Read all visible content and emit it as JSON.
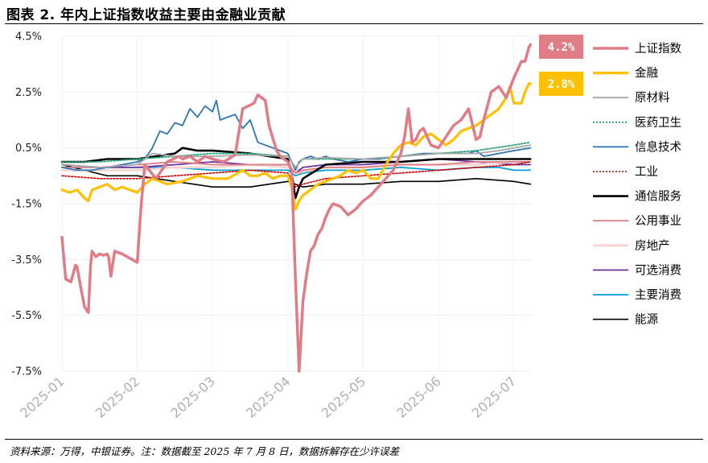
{
  "figure": {
    "title": "图表 2. 年内上证指数收益主要由金融业贡献",
    "source": "资料来源：万得，中银证券。注：数据截至 2025 年 7 月 8 日，数据拆解存在少许误差"
  },
  "chart_data": {
    "type": "line",
    "title": "图表 2. 年内上证指数收益主要由金融业贡献",
    "xlabel": "",
    "ylabel": "",
    "ylim": [
      -7.5,
      4.5
    ],
    "yticks": [
      "4.5%",
      "2.5%",
      "0.5%",
      "-1.5%",
      "-3.5%",
      "-5.5%",
      "-7.5%"
    ],
    "ytick_values": [
      4.5,
      2.5,
      0.5,
      -1.5,
      -3.5,
      -5.5,
      -7.5
    ],
    "xticks": [
      "2025-01",
      "2025-02",
      "2025-03",
      "2025-04",
      "2025-05",
      "2025-06",
      "2025-07"
    ],
    "xtick_values": [
      0,
      1,
      2,
      3,
      4,
      5,
      6
    ],
    "xlim": [
      0,
      6.25
    ],
    "legend_position": "right",
    "badges": [
      {
        "series": "上证指数",
        "label": "4.2%",
        "color": "#e07c85"
      },
      {
        "series": "金融",
        "label": "2.8%",
        "color": "#ffc000"
      }
    ],
    "series": [
      {
        "name": "上证指数",
        "color": "#e07c85",
        "width": 3.5,
        "dash": "",
        "x": [
          0,
          0.05,
          0.12,
          0.18,
          0.2,
          0.25,
          0.3,
          0.35,
          0.38,
          0.4,
          0.45,
          0.5,
          0.55,
          0.6,
          0.62,
          0.65,
          0.7,
          0.75,
          0.8,
          1.0,
          1.05,
          1.1,
          1.25,
          1.4,
          1.55,
          1.6,
          1.7,
          1.8,
          1.9,
          2.0,
          2.15,
          2.3,
          2.4,
          2.55,
          2.6,
          2.7,
          2.75,
          2.85,
          2.9,
          3.0,
          3.05,
          3.1,
          3.15,
          3.2,
          3.25,
          3.3,
          3.35,
          3.4,
          3.45,
          3.5,
          3.55,
          3.6,
          3.7,
          3.8,
          3.9,
          4.0,
          4.1,
          4.2,
          4.3,
          4.4,
          4.5,
          4.55,
          4.6,
          4.65,
          4.7,
          4.75,
          4.8,
          4.9,
          5.0,
          5.1,
          5.2,
          5.3,
          5.4,
          5.5,
          5.55,
          5.6,
          5.7,
          5.8,
          5.9,
          6.0,
          6.05,
          6.1,
          6.15,
          6.2,
          6.22
        ],
        "y": [
          -2.7,
          -4.2,
          -4.3,
          -3.7,
          -3.75,
          -4.5,
          -5.2,
          -5.4,
          -3.7,
          -3.2,
          -3.4,
          -3.3,
          -3.35,
          -3.3,
          -3.4,
          -4.1,
          -3.2,
          -3.25,
          -3.3,
          -3.6,
          -1.6,
          -0.1,
          -0.6,
          0.0,
          0.2,
          0.1,
          0.2,
          0.0,
          0.2,
          0.1,
          0.0,
          0.25,
          1.9,
          2.1,
          2.4,
          2.2,
          1.3,
          0.4,
          0.2,
          0.0,
          -0.3,
          -4.2,
          -7.5,
          -5.0,
          -4.0,
          -3.2,
          -3.0,
          -2.6,
          -2.4,
          -2.0,
          -1.7,
          -1.5,
          -1.6,
          -1.9,
          -1.7,
          -1.4,
          -1.2,
          -0.9,
          -0.6,
          -0.3,
          0.3,
          0.9,
          1.9,
          0.7,
          0.8,
          1.1,
          1.2,
          0.6,
          0.5,
          0.9,
          1.3,
          1.5,
          1.9,
          0.8,
          0.9,
          1.5,
          2.5,
          2.7,
          2.3,
          3.0,
          3.3,
          3.6,
          3.6,
          4.1,
          4.2
        ]
      },
      {
        "name": "金融",
        "color": "#ffc000",
        "width": 3.2,
        "dash": "",
        "x": [
          0,
          0.1,
          0.2,
          0.3,
          0.35,
          0.4,
          0.5,
          0.6,
          0.7,
          0.8,
          0.9,
          1.0,
          1.1,
          1.2,
          1.4,
          1.6,
          1.8,
          2.0,
          2.2,
          2.4,
          2.5,
          2.6,
          2.7,
          2.8,
          2.9,
          3.0,
          3.05,
          3.1,
          3.15,
          3.2,
          3.3,
          3.4,
          3.5,
          3.6,
          3.7,
          3.8,
          3.9,
          4.0,
          4.1,
          4.2,
          4.3,
          4.4,
          4.5,
          4.6,
          4.7,
          4.8,
          4.9,
          5.0,
          5.1,
          5.2,
          5.3,
          5.4,
          5.5,
          5.6,
          5.7,
          5.8,
          5.9,
          5.95,
          6.0,
          6.1,
          6.15,
          6.2,
          6.22
        ],
        "y": [
          -1.0,
          -1.1,
          -1.0,
          -1.3,
          -1.4,
          -1.0,
          -0.9,
          -0.8,
          -1.0,
          -0.9,
          -1.0,
          -1.1,
          -0.8,
          -0.6,
          -0.8,
          -0.7,
          -0.5,
          -0.6,
          -0.6,
          -0.3,
          -0.5,
          -0.5,
          -0.4,
          -0.6,
          -0.5,
          -0.5,
          -0.9,
          -1.7,
          -1.4,
          -1.2,
          -1.0,
          -0.8,
          -0.7,
          -0.6,
          -0.5,
          -0.3,
          -0.4,
          -0.3,
          -0.6,
          -0.6,
          -0.1,
          0.3,
          0.6,
          0.7,
          0.6,
          0.9,
          1.0,
          0.8,
          0.6,
          0.8,
          1.1,
          1.2,
          1.3,
          1.5,
          1.7,
          1.9,
          2.3,
          2.7,
          2.1,
          2.1,
          2.5,
          2.8,
          2.8
        ]
      },
      {
        "name": "原材料",
        "color": "#a6a6a6",
        "width": 1.8,
        "dash": "",
        "x": [
          0,
          0.5,
          1.0,
          1.2,
          1.5,
          2.0,
          2.5,
          3.0,
          3.1,
          3.2,
          3.5,
          4.0,
          4.5,
          5.0,
          5.5,
          5.8,
          6.0,
          6.22
        ],
        "y": [
          -0.1,
          -0.2,
          -0.1,
          0.3,
          0.2,
          0.2,
          0.25,
          0.2,
          -0.2,
          0.1,
          0.15,
          0.1,
          0.2,
          0.3,
          0.3,
          0.4,
          0.5,
          0.6
        ]
      },
      {
        "name": "医药卫生",
        "color": "#2aa37a",
        "width": 1.8,
        "dash": "2,2",
        "x": [
          0,
          0.5,
          1.0,
          1.5,
          2.0,
          2.5,
          3.0,
          3.1,
          3.2,
          3.5,
          4.0,
          4.5,
          5.0,
          5.5,
          6.0,
          6.22
        ],
        "y": [
          0.0,
          0.0,
          0.1,
          0.2,
          0.3,
          0.3,
          0.2,
          -0.2,
          0.1,
          0.1,
          0.1,
          0.2,
          0.3,
          0.4,
          0.6,
          0.7
        ]
      },
      {
        "name": "信息技术",
        "color": "#2e75b6",
        "width": 1.8,
        "dash": "",
        "x": [
          0,
          0.2,
          0.4,
          0.6,
          0.8,
          1.0,
          1.1,
          1.2,
          1.3,
          1.4,
          1.5,
          1.6,
          1.7,
          1.8,
          1.9,
          2.0,
          2.05,
          2.1,
          2.2,
          2.3,
          2.4,
          2.5,
          2.6,
          2.7,
          2.8,
          2.9,
          3.0,
          3.05,
          3.1,
          3.15,
          3.2,
          3.3,
          3.4,
          3.5,
          3.6,
          3.8,
          4.0,
          4.2,
          4.5,
          4.8,
          5.0,
          5.2,
          5.4,
          5.5,
          5.6,
          5.8,
          6.0,
          6.22
        ],
        "y": [
          -0.2,
          -0.3,
          -0.3,
          -0.2,
          -0.1,
          0.0,
          0.1,
          0.5,
          1.1,
          1.0,
          1.4,
          1.3,
          1.9,
          1.6,
          2.0,
          1.8,
          2.2,
          1.5,
          1.6,
          1.7,
          1.2,
          1.5,
          0.7,
          0.6,
          0.5,
          0.4,
          0.3,
          0.0,
          -0.3,
          0.0,
          0.1,
          0.2,
          0.1,
          0.2,
          0.1,
          0.0,
          0.1,
          0.1,
          0.2,
          0.3,
          0.3,
          0.3,
          0.3,
          0.4,
          0.2,
          0.3,
          0.4,
          0.5
        ]
      },
      {
        "name": "工业",
        "color": "#c00000",
        "width": 1.6,
        "dash": "2,2",
        "x": [
          0,
          0.5,
          1.0,
          1.5,
          2.0,
          2.5,
          3.0,
          3.1,
          3.2,
          3.5,
          4.0,
          4.5,
          5.0,
          5.5,
          6.0,
          6.22
        ],
        "y": [
          -0.5,
          -0.6,
          -0.6,
          -0.5,
          -0.4,
          -0.3,
          -0.4,
          -0.9,
          -0.8,
          -0.6,
          -0.5,
          -0.4,
          -0.3,
          -0.2,
          -0.1,
          0.0
        ]
      },
      {
        "name": "通信服务",
        "color": "#000000",
        "width": 2.6,
        "dash": "",
        "x": [
          0,
          0.3,
          0.6,
          1.0,
          1.5,
          1.6,
          1.8,
          2.0,
          2.5,
          3.0,
          3.05,
          3.1,
          3.15,
          3.2,
          3.5,
          4.0,
          4.5,
          5.0,
          5.5,
          6.0,
          6.22
        ],
        "y": [
          0.0,
          0.0,
          0.1,
          0.1,
          0.3,
          0.5,
          0.4,
          0.4,
          0.3,
          0.1,
          -0.4,
          -1.3,
          -0.9,
          -0.6,
          -0.1,
          0.0,
          0.0,
          0.1,
          0.1,
          0.1,
          0.1
        ]
      },
      {
        "name": "公用事业",
        "color": "#e07c85",
        "width": 1.8,
        "dash": "",
        "x": [
          0,
          0.5,
          1.0,
          1.5,
          2.0,
          2.5,
          3.0,
          3.1,
          3.2,
          3.5,
          4.0,
          4.5,
          5.0,
          5.5,
          6.0,
          6.22
        ],
        "y": [
          -0.2,
          -0.2,
          -0.1,
          0.0,
          -0.1,
          -0.1,
          -0.1,
          -0.4,
          -0.3,
          -0.2,
          -0.2,
          -0.1,
          -0.1,
          0.0,
          0.0,
          0.0
        ]
      },
      {
        "name": "房地产",
        "color": "#f4d5d2",
        "width": 2.8,
        "dash": "",
        "x": [
          0,
          0.5,
          1.0,
          1.5,
          2.0,
          2.5,
          3.0,
          3.1,
          3.5,
          4.0,
          4.5,
          5.0,
          5.5,
          6.0,
          6.22
        ],
        "y": [
          -0.3,
          -0.3,
          -0.3,
          -0.2,
          -0.2,
          -0.1,
          -0.2,
          -0.4,
          -0.2,
          -0.2,
          -0.1,
          -0.1,
          -0.1,
          0.0,
          0.0
        ]
      },
      {
        "name": "可选消费",
        "color": "#7030a0",
        "width": 1.8,
        "dash": "",
        "x": [
          0,
          0.5,
          1.0,
          1.5,
          2.0,
          2.5,
          3.0,
          3.1,
          3.2,
          3.5,
          4.0,
          4.5,
          5.0,
          5.5,
          6.0,
          6.22
        ],
        "y": [
          -0.1,
          -0.2,
          -0.2,
          -0.1,
          0.0,
          -0.1,
          -0.1,
          -0.4,
          -0.2,
          -0.1,
          -0.1,
          0.0,
          0.1,
          0.0,
          -0.1,
          -0.1
        ]
      },
      {
        "name": "主要消费",
        "color": "#00a0d8",
        "width": 1.8,
        "dash": "",
        "x": [
          0,
          0.5,
          1.0,
          1.5,
          2.0,
          2.5,
          3.0,
          3.1,
          3.2,
          3.5,
          4.0,
          4.5,
          5.0,
          5.5,
          5.8,
          6.0,
          6.22
        ],
        "y": [
          -0.2,
          -0.2,
          -0.2,
          -0.2,
          -0.3,
          -0.3,
          -0.3,
          -0.5,
          -0.4,
          -0.3,
          -0.3,
          -0.2,
          -0.3,
          -0.2,
          -0.2,
          -0.3,
          -0.3
        ]
      },
      {
        "name": "能源",
        "color": "#000000",
        "width": 1.6,
        "dash": "",
        "x": [
          0,
          0.3,
          0.6,
          1.0,
          1.5,
          2.0,
          2.5,
          3.0,
          3.1,
          3.2,
          3.5,
          4.0,
          4.5,
          5.0,
          5.5,
          6.0,
          6.22
        ],
        "y": [
          -0.1,
          -0.3,
          -0.5,
          -0.5,
          -0.7,
          -0.9,
          -0.9,
          -0.7,
          -0.8,
          -0.9,
          -0.8,
          -0.8,
          -0.7,
          -0.7,
          -0.6,
          -0.7,
          -0.8
        ]
      }
    ]
  }
}
